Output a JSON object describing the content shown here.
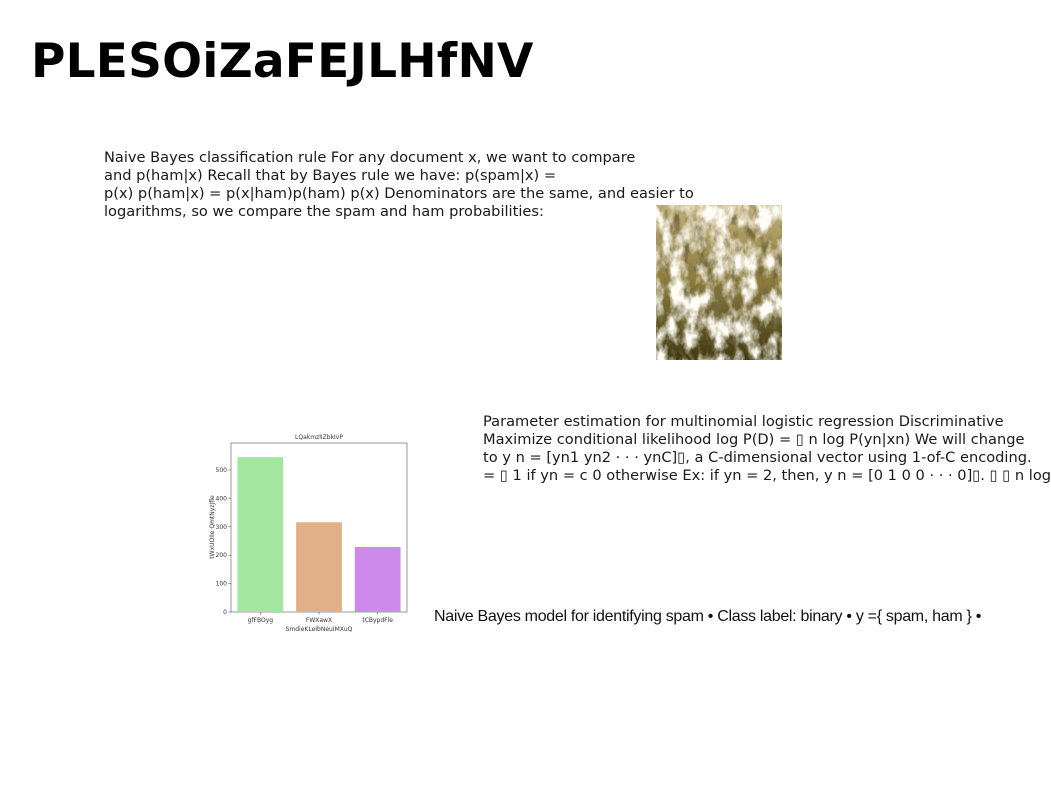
{
  "slide": {
    "title": "PLESOiZaFEJLHfNV",
    "paragraph_1": [
      "Naive Bayes classification rule For any document x, we want to compare",
      "and p(ham|x) Recall that by Bayes rule we have: p(spam|x) =",
      "p(x) p(ham|x) = p(x|ham)p(ham) p(x) Denominators are the same, and easier to",
      "logarithms, so we compare the spam and ham probabilities:"
    ],
    "paragraph_2": [
      "Parameter estimation for multinomial logistic regression Discriminative",
      "Maximize conditional likelihood log P(D) = ▯ n log P(yn|xn) We will change",
      "to y n = [yn1 yn2 · · · ynC]▯, a C-dimensional vector using 1-of-C encoding.",
      "= ▯ 1 if yn = c 0 otherwise Ex: if yn = 2, then, y n = [0 1 0 0 · · · 0]▯. ▯ ▯ n log"
    ],
    "paragraph_3": "Naive Bayes model for identifying spam • Class label: binary • y ={ spam, ham } •"
  },
  "chart_data": {
    "type": "bar",
    "title": "LQakmzlIZbkIvP",
    "xlabel": "SmdieKLeIbNeuIMXuQ",
    "ylabel": "tWxUOIIe QmtNyzJfle",
    "categories": [
      "gfFBOyg",
      "FWXawX",
      "tCBypdFle"
    ],
    "values": [
      545,
      316,
      229
    ],
    "colors": [
      "#a2e6a0",
      "#e2b088",
      "#cd8aea"
    ],
    "ylim": [
      0,
      595
    ],
    "yticks": [
      0,
      100,
      200,
      300,
      400,
      500
    ],
    "grid": false,
    "legend": "none"
  }
}
